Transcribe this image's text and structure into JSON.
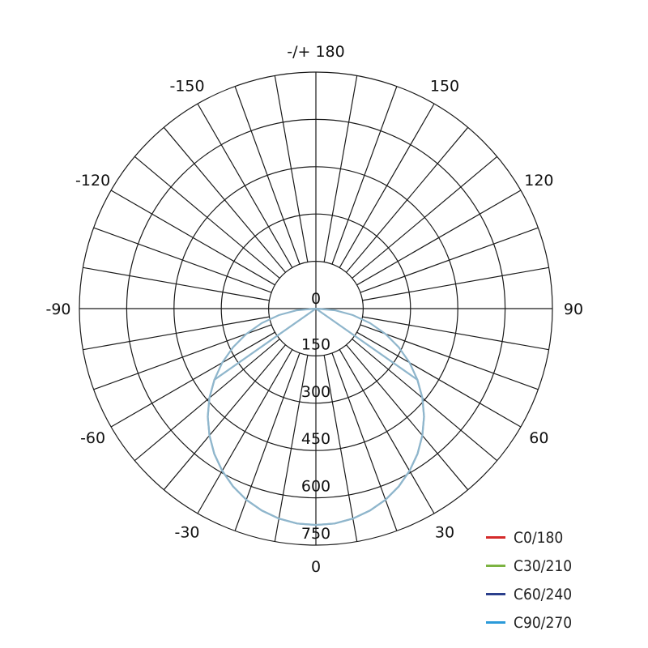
{
  "chart_data": {
    "type": "polar",
    "radial_ticks": [
      0,
      150,
      300,
      450,
      600,
      750
    ],
    "radial_range": [
      0,
      750
    ],
    "angle_labels": [
      {
        "angle": 180,
        "text": "-/+ 180"
      },
      {
        "angle": 150,
        "text": "150"
      },
      {
        "angle": 120,
        "text": "120"
      },
      {
        "angle": 90,
        "text": "90"
      },
      {
        "angle": 60,
        "text": "60"
      },
      {
        "angle": 30,
        "text": "30"
      },
      {
        "angle": 0,
        "text": "0"
      },
      {
        "angle": -30,
        "text": "-30"
      },
      {
        "angle": -60,
        "text": "-60"
      },
      {
        "angle": -90,
        "text": "-90"
      },
      {
        "angle": -120,
        "text": "-120"
      },
      {
        "angle": -150,
        "text": "-150"
      }
    ],
    "angular_grid_step_deg": 10,
    "grid": true,
    "legend_position": "bottom-right",
    "curve_color": "#8fb6cc",
    "legend": [
      {
        "name": "C0/180",
        "color": "#d42a2a"
      },
      {
        "name": "C30/210",
        "color": "#7cb342"
      },
      {
        "name": "C60/240",
        "color": "#2b3f8c"
      },
      {
        "name": "C90/270",
        "color": "#2b9ad9"
      }
    ],
    "series": [
      {
        "name": "C90/270",
        "angles": [
          -90,
          -85,
          -80,
          -75,
          -70,
          -65,
          -60,
          -55,
          -50,
          -45,
          -40,
          -35,
          -30,
          -25,
          -20,
          -15,
          -10,
          -5,
          0,
          5,
          10,
          15,
          20,
          25,
          30,
          35,
          40,
          45,
          50,
          55,
          60,
          65,
          70,
          75,
          80,
          85,
          90
        ],
        "values": [
          0,
          60,
          119,
          178,
          235,
          290,
          343,
          393,
          441,
          485,
          525,
          562,
          594,
          622,
          645,
          663,
          676,
          684,
          686,
          684,
          676,
          663,
          645,
          622,
          594,
          562,
          525,
          485,
          441,
          393,
          343,
          290,
          235,
          178,
          119,
          60,
          0
        ]
      },
      {
        "name": "C0/180",
        "angles": [
          -60,
          -55,
          -50,
          -45,
          -40,
          -35,
          -30,
          -25,
          -20,
          -15,
          -10,
          -5,
          0,
          5,
          10,
          15,
          20,
          25,
          30,
          35,
          40,
          45,
          50,
          55,
          60
        ],
        "values": [
          0,
          393,
          441,
          485,
          525,
          562,
          594,
          622,
          645,
          663,
          676,
          684,
          686,
          684,
          676,
          663,
          645,
          622,
          594,
          562,
          525,
          485,
          441,
          393,
          0
        ]
      }
    ]
  }
}
